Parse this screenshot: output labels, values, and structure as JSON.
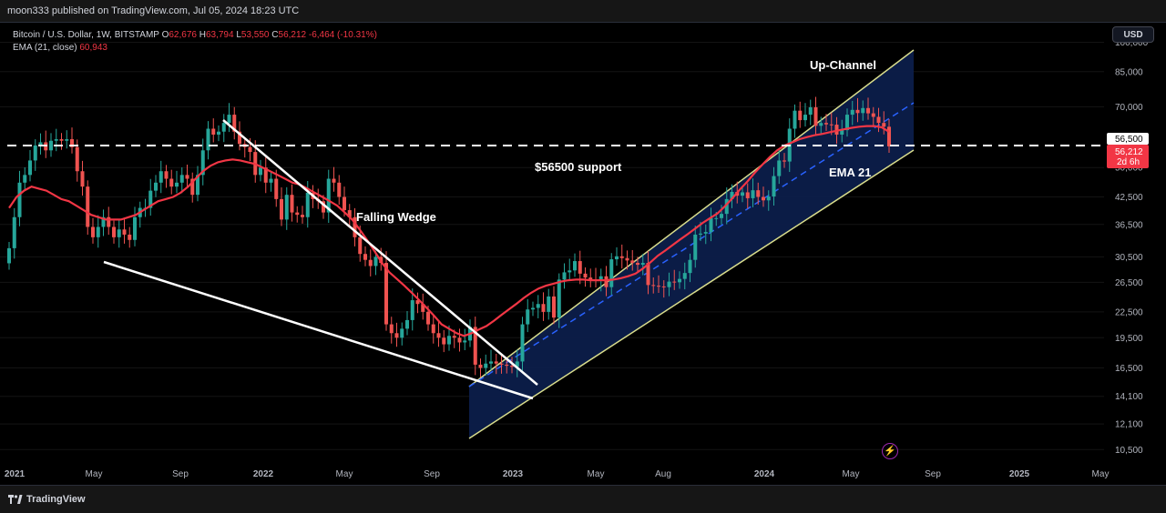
{
  "header": {
    "published": "moon333 published on TradingView.com, Jul 05, 2024 18:23 UTC"
  },
  "legend": {
    "symbol": "Bitcoin / U.S. Dollar, 1W, BITSTAMP",
    "open_label": "O",
    "open": "62,676",
    "high_label": "H",
    "high": "63,794",
    "low_label": "L",
    "low": "53,550",
    "close_label": "C",
    "close": "56,212",
    "change": "-6,464 (-10.31%)",
    "ema_label": "EMA (21, close)",
    "ema_value": "60,943"
  },
  "currency_button": "USD",
  "annotations": {
    "falling_wedge": "Falling Wedge",
    "support": "$56500 support",
    "up_channel": "Up-Channel",
    "ema21": "EMA 21"
  },
  "footer": {
    "brand": "TradingView"
  },
  "colors": {
    "up": "#26a69a",
    "down": "#ef5350",
    "ema": "#f23645",
    "channel_fill": "#0c1d4a",
    "channel_border": "#d8dc8c",
    "wedge": "#ffffff",
    "midline": "#2962ff"
  },
  "chart_data": {
    "type": "candlestick",
    "scale": "log",
    "interval": "1W",
    "x_ticks": [
      "2021",
      "May",
      "Sep",
      "2022",
      "May",
      "Sep",
      "2023",
      "May",
      "Aug",
      "2024",
      "May",
      "Sep",
      "2025",
      "May"
    ],
    "y_ticks": [
      "100,000",
      "85,000",
      "70,000",
      "56,500",
      "50,000",
      "42,500",
      "36,500",
      "30,500",
      "26,500",
      "22,500",
      "19,500",
      "16,500",
      "14,100",
      "12,100",
      "10,500"
    ],
    "support_level": 56500,
    "support_label": "56,500",
    "last_price": 56212,
    "last_price_label": "56,212",
    "countdown": "2d 6h",
    "ylim": [
      9800,
      112000
    ],
    "weekly_close": [
      32000,
      38000,
      46000,
      48000,
      52000,
      56500,
      57500,
      55000,
      58000,
      58500,
      58000,
      58500,
      56000,
      49000,
      45000,
      36000,
      34000,
      36000,
      38000,
      36000,
      34000,
      35500,
      34500,
      33500,
      38000,
      40000,
      40000,
      44000,
      46000,
      49000,
      47000,
      45000,
      46000,
      48000,
      47000,
      43000,
      48000,
      55000,
      62000,
      60000,
      61000,
      64000,
      67000,
      61000,
      57000,
      56000,
      54500,
      48000,
      50000,
      46000,
      47000,
      42000,
      37500,
      43000,
      39000,
      38500,
      38000,
      43500,
      42000,
      41500,
      39000,
      47000,
      46000,
      42500,
      39500,
      38000,
      34000,
      31000,
      30000,
      29000,
      30500,
      29500,
      21000,
      20000,
      19500,
      20500,
      21500,
      24000,
      23500,
      22500,
      21000,
      20000,
      19500,
      18800,
      19700,
      19500,
      19000,
      19200,
      20700,
      16800,
      16500,
      16900,
      17100,
      16900,
      16800,
      16700,
      16600,
      17100,
      21000,
      22800,
      23000,
      23500,
      22500,
      24500,
      21800,
      26900,
      28000,
      28300,
      29800,
      27800,
      27200,
      26900,
      26700,
      27400,
      25800,
      30100,
      30600,
      30300,
      29900,
      29500,
      29200,
      29500,
      26100,
      26000,
      25900,
      25800,
      26600,
      26500,
      27000,
      27900,
      30000,
      34500,
      34700,
      35000,
      37800,
      37800,
      38700,
      42000,
      43700,
      42800,
      43600,
      42200,
      44100,
      42500,
      41700,
      42600,
      47700,
      52000,
      51700,
      62000,
      68500,
      65000,
      67000,
      69800,
      63000,
      64000,
      63500,
      63400,
      60000,
      61500,
      67000,
      68800,
      67600,
      69500,
      67500,
      66200,
      64000,
      62700,
      56212
    ],
    "ema21": [
      40000,
      42500,
      44000,
      45000,
      44500,
      44000,
      43000,
      42000,
      41500,
      40500,
      39500,
      38500,
      38000,
      37500,
      37500,
      37500,
      38000,
      38500,
      39500,
      40500,
      41500,
      42000,
      42500,
      43500,
      45000,
      47000,
      49000,
      50500,
      51500,
      52000,
      52300,
      52000,
      51500,
      51000,
      50000,
      49000,
      48000,
      47000,
      46000,
      45500,
      44500,
      43500,
      42500,
      41500,
      40500,
      39000,
      37500,
      35500,
      33500,
      31500,
      29500,
      28000,
      27000,
      26000,
      25000,
      24000,
      23000,
      22000,
      21000,
      20500,
      20000,
      19700,
      20000,
      20400,
      20800,
      21400,
      22100,
      22800,
      23500,
      24300,
      25000,
      25600,
      26000,
      26300,
      26600,
      26800,
      26900,
      26900,
      26800,
      26800,
      26800,
      26900,
      27100,
      27400,
      27800,
      28600,
      29600,
      30700,
      31600,
      32600,
      33600,
      34600,
      35700,
      36800,
      37800,
      38800,
      40400,
      42200,
      44300,
      46300,
      48600,
      50800,
      53000,
      55000,
      56500,
      57500,
      58500,
      59200,
      59800,
      60200,
      60800,
      61300,
      61800,
      62300,
      62700,
      62900,
      62900,
      62500,
      60943
    ]
  }
}
